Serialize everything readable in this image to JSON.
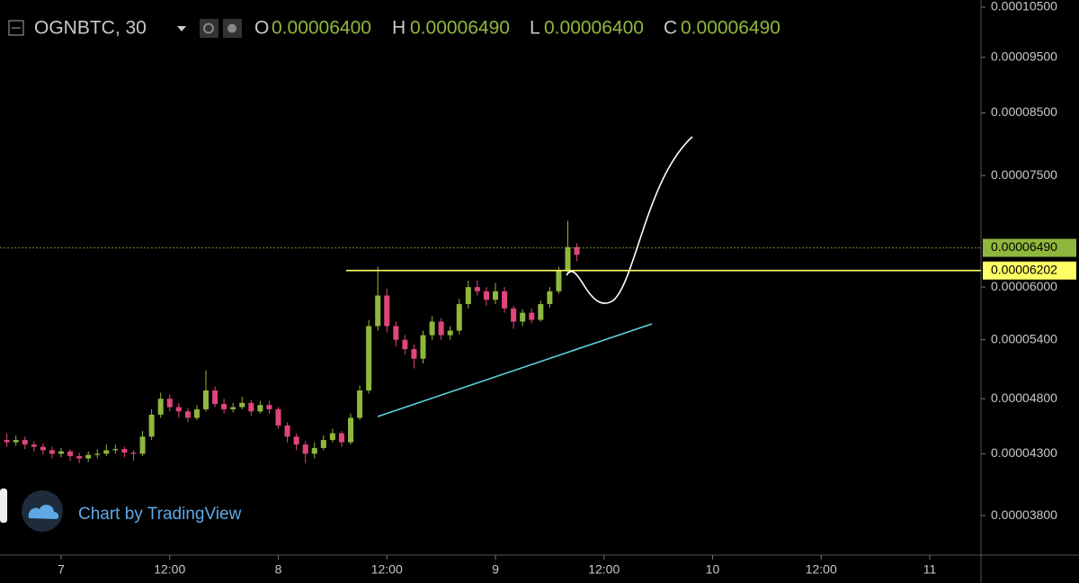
{
  "header": {
    "symbol": "OGNBTC, 30",
    "ohlc": [
      {
        "key": "O",
        "value": "0.00006400"
      },
      {
        "key": "H",
        "value": "0.00006490"
      },
      {
        "key": "L",
        "value": "0.00006400"
      },
      {
        "key": "C",
        "value": "0.00006490"
      }
    ]
  },
  "watermark": "Chart by TradingView",
  "chart_data": {
    "type": "candlestick",
    "open": [
      4.42e-05,
      4.4e-05,
      4.42e-05,
      4.38e-05,
      4.36e-05,
      4.33e-05,
      4.3e-05,
      4.32e-05,
      4.28e-05,
      4.26e-05,
      4.29e-05,
      4.3e-05,
      4.33e-05,
      4.34e-05,
      4.31e-05,
      4.3e-05,
      4.45e-05,
      4.65e-05,
      4.8e-05,
      4.72e-05,
      4.68e-05,
      4.62e-05,
      4.7e-05,
      4.88e-05,
      4.75e-05,
      4.7e-05,
      4.72e-05,
      4.76e-05,
      4.68e-05,
      4.74e-05,
      4.7e-05,
      4.55e-05,
      4.45e-05,
      4.38e-05,
      4.3e-05,
      4.35e-05,
      4.42e-05,
      4.48e-05,
      4.4e-05,
      4.62e-05,
      4.88e-05,
      5.55e-05,
      5.9e-05,
      5.55e-05,
      5.4e-05,
      5.3e-05,
      5.2e-05,
      5.45e-05,
      5.6e-05,
      5.45e-05,
      5.5e-05,
      5.8e-05,
      6e-05,
      5.95e-05,
      5.85e-05,
      5.95e-05,
      5.75e-05,
      5.6e-05,
      5.7e-05,
      5.62e-05,
      5.8e-05,
      5.95e-05,
      6.2e-05,
      6.5e-05
    ],
    "high": [
      4.48e-05,
      4.46e-05,
      4.45e-05,
      4.41e-05,
      4.39e-05,
      4.36e-05,
      4.35e-05,
      4.34e-05,
      4.31e-05,
      4.32e-05,
      4.34e-05,
      4.38e-05,
      4.38e-05,
      4.36e-05,
      4.33e-05,
      4.5e-05,
      4.7e-05,
      4.86e-05,
      4.84e-05,
      4.76e-05,
      4.71e-05,
      4.74e-05,
      5.08e-05,
      4.92e-05,
      4.8e-05,
      4.76e-05,
      4.82e-05,
      4.79e-05,
      4.78e-05,
      4.78e-05,
      4.72e-05,
      4.58e-05,
      4.48e-05,
      4.41e-05,
      4.4e-05,
      4.46e-05,
      4.52e-05,
      4.5e-05,
      4.66e-05,
      4.93e-05,
      5.62e-05,
      6.25e-05,
      5.98e-05,
      5.6e-05,
      5.45e-05,
      5.35e-05,
      5.5e-05,
      5.66e-05,
      5.64e-05,
      5.55e-05,
      5.86e-05,
      6.08e-05,
      6.08e-05,
      6e-05,
      6.05e-05,
      6e-05,
      5.78e-05,
      5.74e-05,
      5.75e-05,
      5.84e-05,
      6e-05,
      6.25e-05,
      6.85e-05,
      6.55e-05
    ],
    "low": [
      4.36e-05,
      4.37e-05,
      4.34e-05,
      4.32e-05,
      4.29e-05,
      4.26e-05,
      4.27e-05,
      4.24e-05,
      4.22e-05,
      4.23e-05,
      4.26e-05,
      4.28e-05,
      4.3e-05,
      4.27e-05,
      4.24e-05,
      4.28e-05,
      4.42e-05,
      4.62e-05,
      4.68e-05,
      4.62e-05,
      4.58e-05,
      4.6e-05,
      4.68e-05,
      4.72e-05,
      4.66e-05,
      4.67e-05,
      4.7e-05,
      4.64e-05,
      4.66e-05,
      4.66e-05,
      4.52e-05,
      4.4e-05,
      4.33e-05,
      4.22e-05,
      4.26e-05,
      4.33e-05,
      4.4e-05,
      4.36e-05,
      4.38e-05,
      4.6e-05,
      4.85e-05,
      5.5e-05,
      5.48e-05,
      5.33e-05,
      5.24e-05,
      5.1e-05,
      5.15e-05,
      5.4e-05,
      5.4e-05,
      5.4e-05,
      5.46e-05,
      5.75e-05,
      5.9e-05,
      5.78e-05,
      5.8e-05,
      5.7e-05,
      5.52e-05,
      5.55e-05,
      5.58e-05,
      5.6e-05,
      5.76e-05,
      5.92e-05,
      6.15e-05,
      6.32e-05
    ],
    "close": [
      4.4e-05,
      4.42e-05,
      4.38e-05,
      4.36e-05,
      4.33e-05,
      4.3e-05,
      4.32e-05,
      4.28e-05,
      4.26e-05,
      4.29e-05,
      4.3e-05,
      4.33e-05,
      4.34e-05,
      4.31e-05,
      4.3e-05,
      4.45e-05,
      4.65e-05,
      4.8e-05,
      4.72e-05,
      4.68e-05,
      4.62e-05,
      4.7e-05,
      4.88e-05,
      4.75e-05,
      4.7e-05,
      4.72e-05,
      4.76e-05,
      4.68e-05,
      4.74e-05,
      4.7e-05,
      4.55e-05,
      4.45e-05,
      4.38e-05,
      4.3e-05,
      4.35e-05,
      4.42e-05,
      4.48e-05,
      4.4e-05,
      4.62e-05,
      4.88e-05,
      5.55e-05,
      5.9e-05,
      5.55e-05,
      5.4e-05,
      5.3e-05,
      5.2e-05,
      5.45e-05,
      5.6e-05,
      5.45e-05,
      5.5e-05,
      5.8e-05,
      6e-05,
      5.95e-05,
      5.85e-05,
      5.95e-05,
      5.75e-05,
      5.6e-05,
      5.7e-05,
      5.62e-05,
      5.8e-05,
      5.95e-05,
      6.2e-05,
      6.5e-05,
      6.4e-05
    ],
    "up_color": "#8fb73e",
    "down_color": "#e0457b",
    "log_scale": true,
    "ylim": [
      3.524e-05,
      0.00010652
    ],
    "yticks": [
      {
        "value": 0.000105,
        "label": "0.00010500"
      },
      {
        "value": 9.5e-05,
        "label": "0.00009500"
      },
      {
        "value": 8.5e-05,
        "label": "0.00008500"
      },
      {
        "value": 7.5e-05,
        "label": "0.00007500"
      },
      {
        "value": 6e-05,
        "label": "0.00006000"
      },
      {
        "value": 5.4e-05,
        "label": "0.00005400"
      },
      {
        "value": 4.8e-05,
        "label": "0.00004800"
      },
      {
        "value": 4.3e-05,
        "label": "0.00004300"
      },
      {
        "value": 3.8e-05,
        "label": "0.00003800"
      }
    ],
    "xtick_labels": [
      "7",
      "12:00",
      "8",
      "12:00",
      "9",
      "12:00",
      "10",
      "12:00",
      "11"
    ],
    "price_lines": [
      {
        "value": 6.49e-05,
        "label": "0.00006490",
        "color": "#8fb73e"
      },
      {
        "value": 6.202e-05,
        "label": "0.00006202",
        "color": "#ffff66"
      }
    ]
  }
}
